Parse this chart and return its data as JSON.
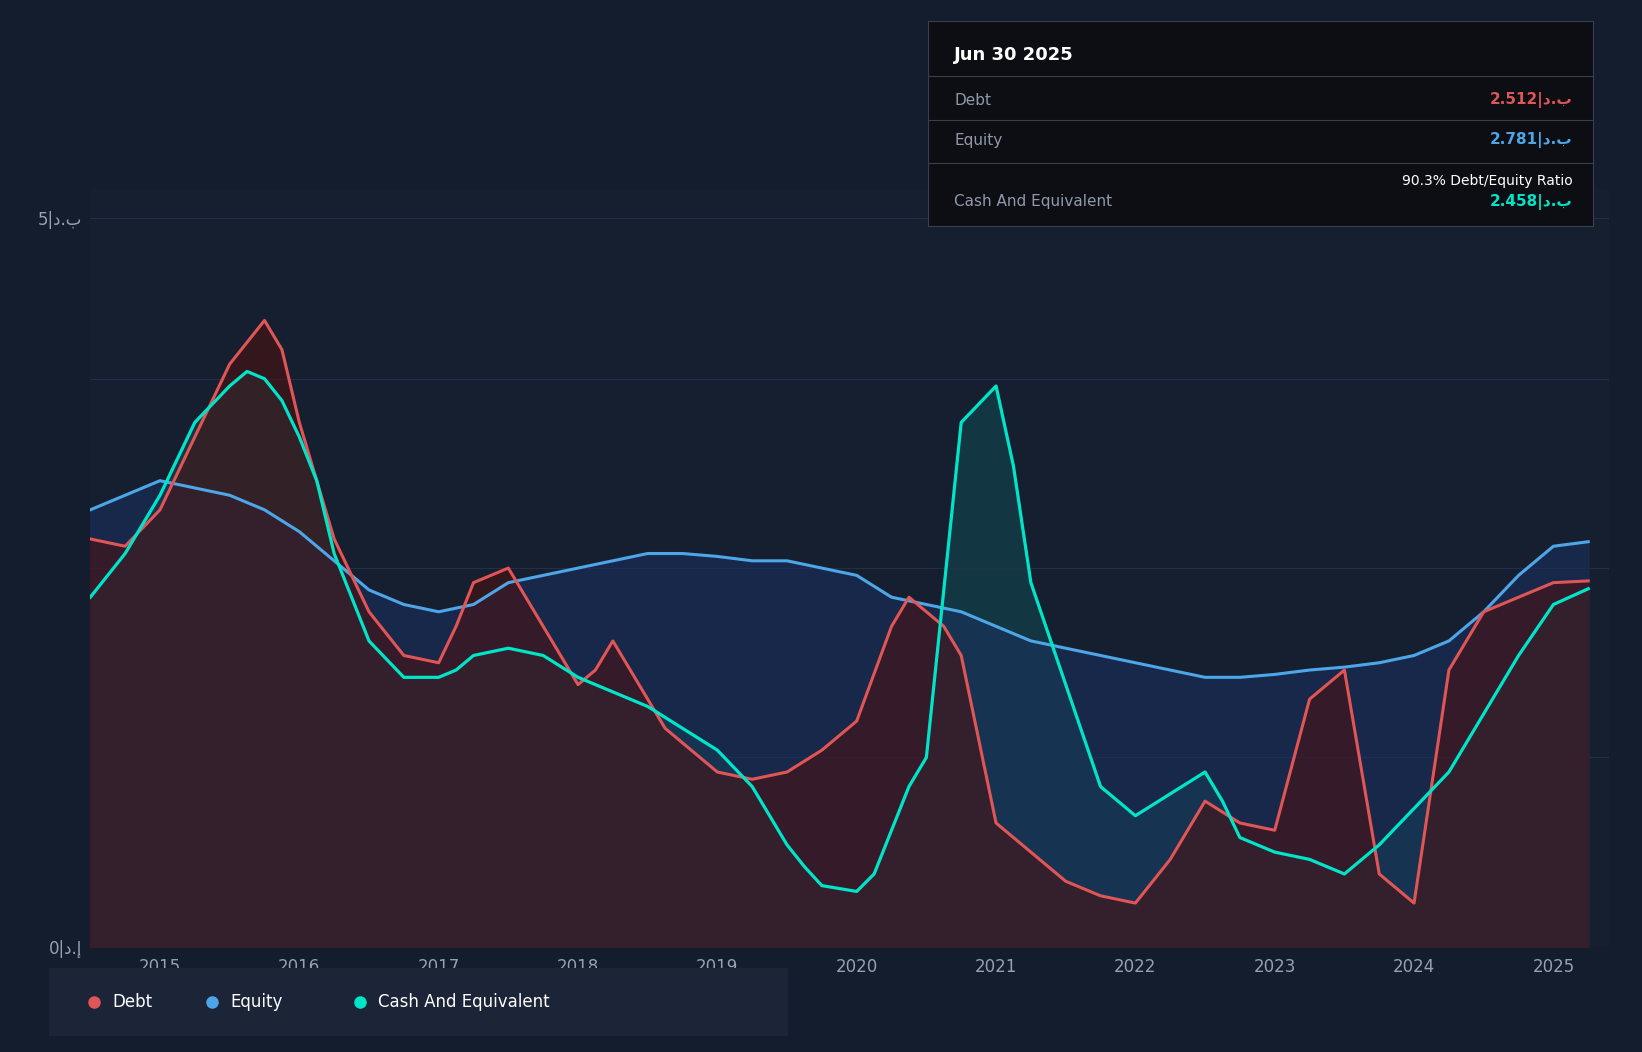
{
  "bg_color": "#131d2e",
  "plot_bg_color": "#161f30",
  "grid_color": "#253050",
  "y_label_0": "0|د.إ",
  "y_label_5": "5|د.ب",
  "y_ticks": [
    0,
    5
  ],
  "x_ticks": [
    2015,
    2016,
    2017,
    2018,
    2019,
    2020,
    2021,
    2022,
    2023,
    2024,
    2025
  ],
  "debt_color": "#e05555",
  "equity_color": "#4da6e8",
  "cash_color": "#00e5c8",
  "tooltip": {
    "date": "Jun 30 2025",
    "debt_label": "Debt",
    "debt_value": "2.512|د.ب",
    "equity_label": "Equity",
    "equity_value": "2.781|د.ب",
    "ratio_text": "90.3% Debt/Equity Ratio",
    "cash_label": "Cash And Equivalent",
    "cash_value": "2.458|د.ب"
  },
  "legend": [
    {
      "label": "Debt",
      "color": "#e05555"
    },
    {
      "label": "Equity",
      "color": "#4da6e8"
    },
    {
      "label": "Cash And Equivalent",
      "color": "#00e5c8"
    }
  ],
  "debt_x": [
    2014.5,
    2014.75,
    2015.0,
    2015.25,
    2015.5,
    2015.75,
    2015.875,
    2016.0,
    2016.125,
    2016.25,
    2016.5,
    2016.75,
    2017.0,
    2017.125,
    2017.25,
    2017.5,
    2017.75,
    2018.0,
    2018.125,
    2018.25,
    2018.5,
    2018.625,
    2018.75,
    2019.0,
    2019.25,
    2019.5,
    2019.75,
    2020.0,
    2020.25,
    2020.375,
    2020.5,
    2020.625,
    2020.75,
    2021.0,
    2021.25,
    2021.5,
    2021.75,
    2022.0,
    2022.25,
    2022.5,
    2022.75,
    2023.0,
    2023.25,
    2023.5,
    2023.75,
    2024.0,
    2024.25,
    2024.5,
    2024.75,
    2025.0,
    2025.25
  ],
  "debt_y": [
    2.8,
    2.75,
    3.0,
    3.5,
    4.0,
    4.3,
    4.1,
    3.6,
    3.2,
    2.8,
    2.3,
    2.0,
    1.95,
    2.2,
    2.5,
    2.6,
    2.2,
    1.8,
    1.9,
    2.1,
    1.7,
    1.5,
    1.4,
    1.2,
    1.15,
    1.2,
    1.35,
    1.55,
    2.2,
    2.4,
    2.3,
    2.2,
    2.0,
    0.85,
    0.65,
    0.45,
    0.35,
    0.3,
    0.6,
    1.0,
    0.85,
    0.8,
    1.7,
    1.9,
    0.5,
    0.3,
    1.9,
    2.3,
    2.4,
    2.5,
    2.512
  ],
  "equity_x": [
    2014.5,
    2014.75,
    2015.0,
    2015.25,
    2015.5,
    2015.75,
    2016.0,
    2016.25,
    2016.5,
    2016.75,
    2017.0,
    2017.25,
    2017.5,
    2017.75,
    2018.0,
    2018.25,
    2018.5,
    2018.75,
    2019.0,
    2019.25,
    2019.5,
    2019.75,
    2020.0,
    2020.25,
    2020.5,
    2020.75,
    2021.0,
    2021.25,
    2021.5,
    2021.75,
    2022.0,
    2022.25,
    2022.5,
    2022.75,
    2023.0,
    2023.25,
    2023.5,
    2023.75,
    2024.0,
    2024.25,
    2024.5,
    2024.75,
    2025.0,
    2025.25
  ],
  "equity_y": [
    3.0,
    3.1,
    3.2,
    3.15,
    3.1,
    3.0,
    2.85,
    2.65,
    2.45,
    2.35,
    2.3,
    2.35,
    2.5,
    2.55,
    2.6,
    2.65,
    2.7,
    2.7,
    2.68,
    2.65,
    2.65,
    2.6,
    2.55,
    2.4,
    2.35,
    2.3,
    2.2,
    2.1,
    2.05,
    2.0,
    1.95,
    1.9,
    1.85,
    1.85,
    1.87,
    1.9,
    1.92,
    1.95,
    2.0,
    2.1,
    2.3,
    2.55,
    2.75,
    2.781
  ],
  "cash_x": [
    2014.5,
    2014.75,
    2015.0,
    2015.25,
    2015.5,
    2015.625,
    2015.75,
    2015.875,
    2016.0,
    2016.125,
    2016.25,
    2016.5,
    2016.75,
    2017.0,
    2017.125,
    2017.25,
    2017.5,
    2017.75,
    2018.0,
    2018.25,
    2018.5,
    2018.75,
    2019.0,
    2019.25,
    2019.375,
    2019.5,
    2019.625,
    2019.75,
    2020.0,
    2020.125,
    2020.25,
    2020.375,
    2020.5,
    2020.75,
    2021.0,
    2021.125,
    2021.25,
    2021.5,
    2021.75,
    2022.0,
    2022.25,
    2022.5,
    2022.625,
    2022.75,
    2023.0,
    2023.25,
    2023.5,
    2023.75,
    2024.0,
    2024.25,
    2024.5,
    2024.75,
    2025.0,
    2025.25
  ],
  "cash_y": [
    2.4,
    2.7,
    3.1,
    3.6,
    3.85,
    3.95,
    3.9,
    3.75,
    3.5,
    3.2,
    2.7,
    2.1,
    1.85,
    1.85,
    1.9,
    2.0,
    2.05,
    2.0,
    1.85,
    1.75,
    1.65,
    1.5,
    1.35,
    1.1,
    0.9,
    0.7,
    0.55,
    0.42,
    0.38,
    0.5,
    0.8,
    1.1,
    1.3,
    3.6,
    3.85,
    3.3,
    2.5,
    1.8,
    1.1,
    0.9,
    1.05,
    1.2,
    1.0,
    0.75,
    0.65,
    0.6,
    0.5,
    0.7,
    0.95,
    1.2,
    1.6,
    2.0,
    2.35,
    2.458
  ]
}
